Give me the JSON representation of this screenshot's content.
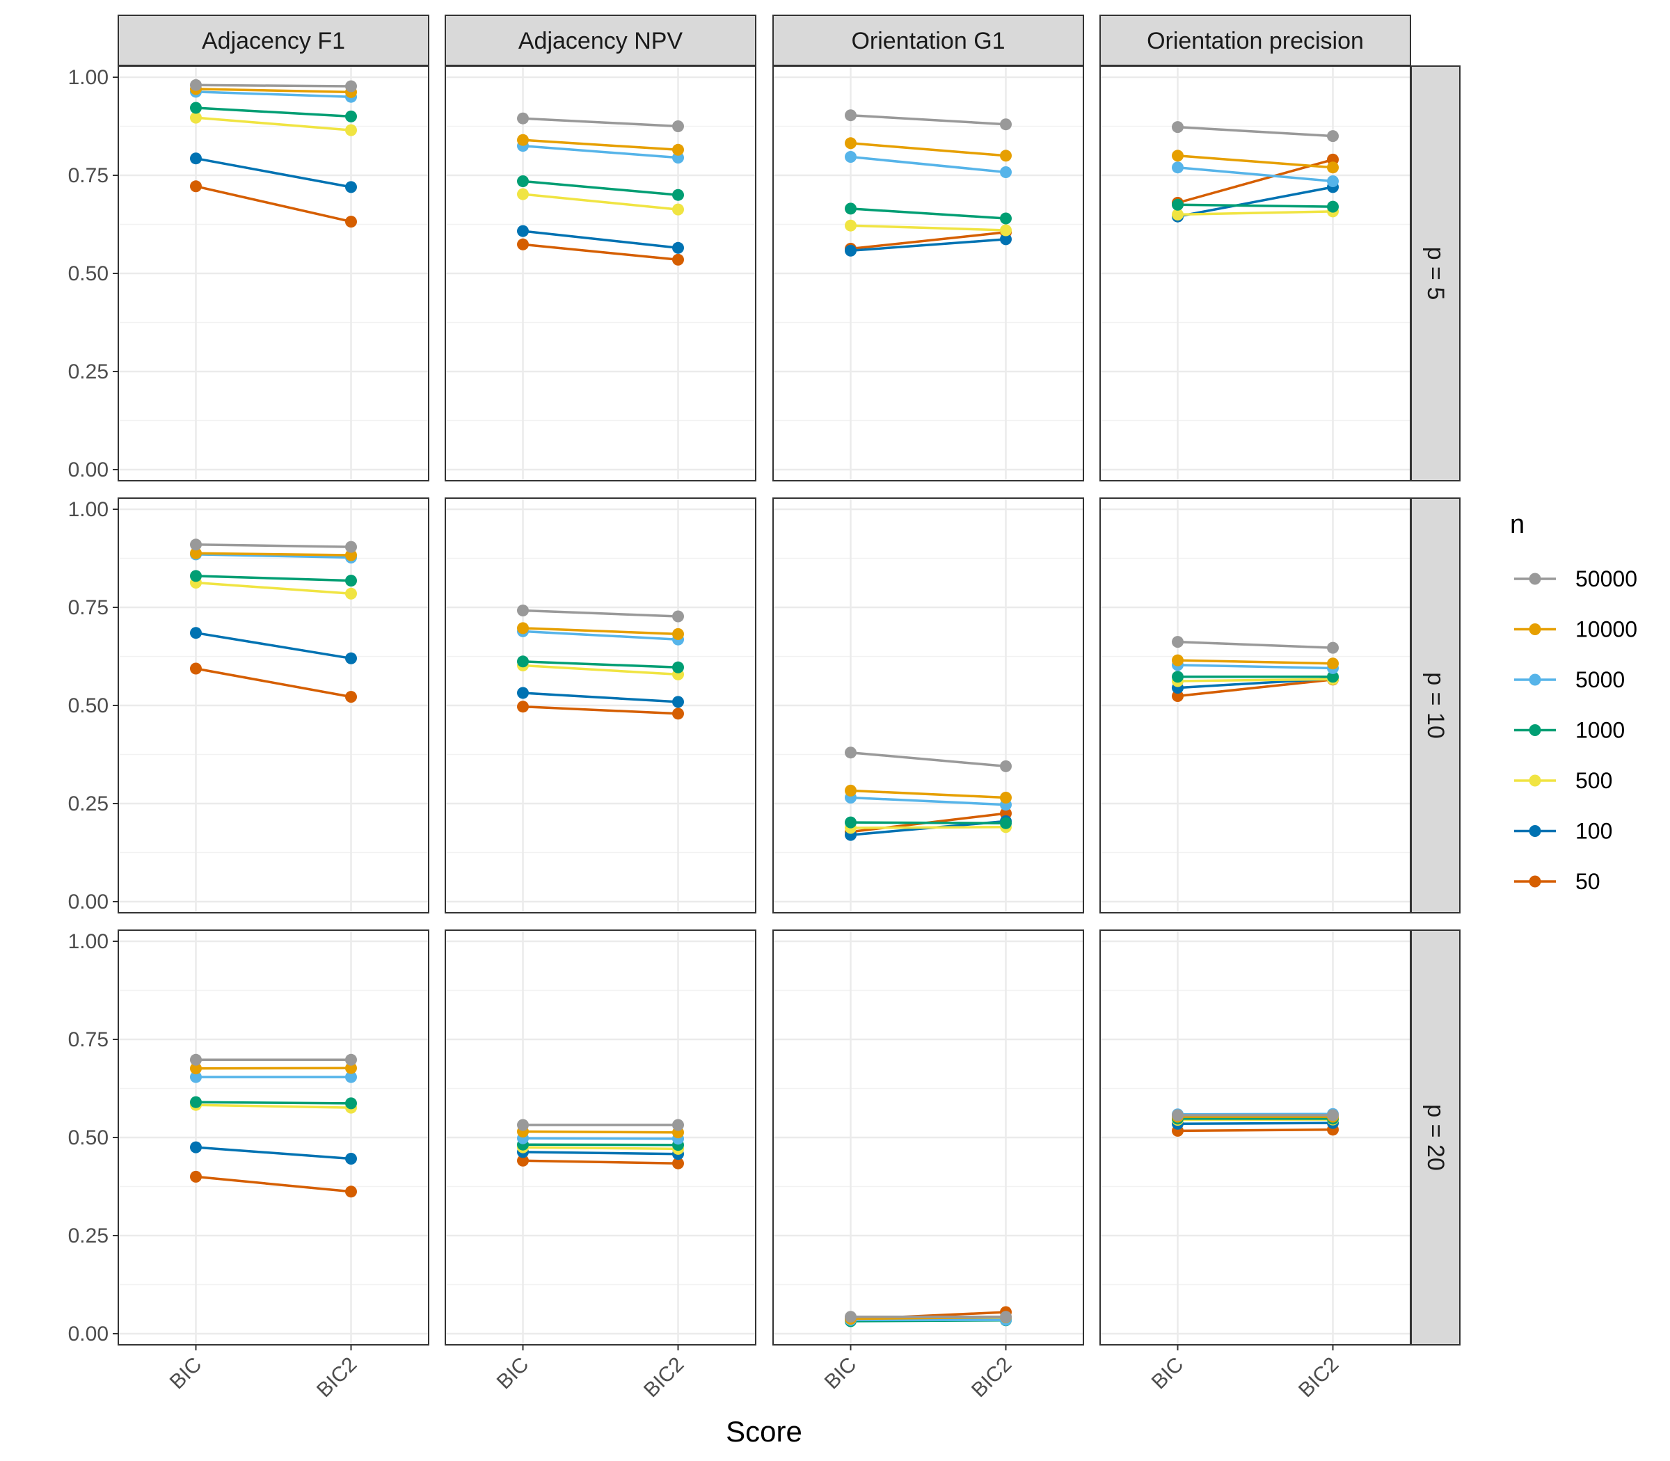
{
  "chart_data": {
    "type": "line",
    "title": "",
    "xlabel": "Score",
    "ylabel": "",
    "categories": [
      "BIC",
      "BIC2"
    ],
    "ylim": [
      0,
      1
    ],
    "yticks": [
      0,
      0.25,
      0.5,
      0.75,
      1
    ],
    "ytick_labels": [
      "0.00",
      "0.25",
      "0.50",
      "0.75",
      "1.00"
    ],
    "grid": true,
    "column_facets": [
      "Adjacency F1",
      "Adjacency NPV",
      "Orientation G1",
      "Orientation precision"
    ],
    "row_facets": [
      "p = 5",
      "p = 10",
      "p = 20"
    ],
    "legend": {
      "title": "n",
      "position": "right",
      "entries": [
        {
          "name": "50000",
          "color": "#999999"
        },
        {
          "name": "10000",
          "color": "#E69F00"
        },
        {
          "name": "5000",
          "color": "#56B4E9"
        },
        {
          "name": "1000",
          "color": "#009E73"
        },
        {
          "name": "500",
          "color": "#F0E442"
        },
        {
          "name": "100",
          "color": "#0072B2"
        },
        {
          "name": "50",
          "color": "#D55E00"
        }
      ]
    },
    "panels": [
      {
        "row": "p = 5",
        "col": "Adjacency F1",
        "series": [
          {
            "name": "50000",
            "values": [
              0.98,
              0.977
            ]
          },
          {
            "name": "10000",
            "values": [
              0.97,
              0.962
            ]
          },
          {
            "name": "5000",
            "values": [
              0.963,
              0.95
            ]
          },
          {
            "name": "1000",
            "values": [
              0.922,
              0.9
            ]
          },
          {
            "name": "500",
            "values": [
              0.897,
              0.865
            ]
          },
          {
            "name": "100",
            "values": [
              0.793,
              0.72
            ]
          },
          {
            "name": "50",
            "values": [
              0.722,
              0.632
            ]
          }
        ]
      },
      {
        "row": "p = 5",
        "col": "Adjacency NPV",
        "series": [
          {
            "name": "50000",
            "values": [
              0.895,
              0.875
            ]
          },
          {
            "name": "10000",
            "values": [
              0.84,
              0.815
            ]
          },
          {
            "name": "5000",
            "values": [
              0.825,
              0.795
            ]
          },
          {
            "name": "1000",
            "values": [
              0.735,
              0.7
            ]
          },
          {
            "name": "500",
            "values": [
              0.702,
              0.663
            ]
          },
          {
            "name": "100",
            "values": [
              0.608,
              0.565
            ]
          },
          {
            "name": "50",
            "values": [
              0.574,
              0.535
            ]
          }
        ]
      },
      {
        "row": "p = 5",
        "col": "Orientation G1",
        "series": [
          {
            "name": "50000",
            "values": [
              0.903,
              0.88
            ]
          },
          {
            "name": "10000",
            "values": [
              0.832,
              0.8
            ]
          },
          {
            "name": "5000",
            "values": [
              0.797,
              0.758
            ]
          },
          {
            "name": "1000",
            "values": [
              0.665,
              0.64
            ]
          },
          {
            "name": "500",
            "values": [
              0.622,
              0.61
            ]
          },
          {
            "name": "100",
            "values": [
              0.558,
              0.587
            ]
          },
          {
            "name": "50",
            "values": [
              0.563,
              0.605
            ]
          }
        ]
      },
      {
        "row": "p = 5",
        "col": "Orientation precision",
        "series": [
          {
            "name": "50000",
            "values": [
              0.873,
              0.85
            ]
          },
          {
            "name": "10000",
            "values": [
              0.8,
              0.77
            ]
          },
          {
            "name": "5000",
            "values": [
              0.77,
              0.735
            ]
          },
          {
            "name": "1000",
            "values": [
              0.675,
              0.67
            ]
          },
          {
            "name": "500",
            "values": [
              0.65,
              0.658
            ]
          },
          {
            "name": "100",
            "values": [
              0.645,
              0.72
            ]
          },
          {
            "name": "50",
            "values": [
              0.68,
              0.79
            ]
          }
        ]
      },
      {
        "row": "p = 10",
        "col": "Adjacency F1",
        "series": [
          {
            "name": "50000",
            "values": [
              0.91,
              0.904
            ]
          },
          {
            "name": "10000",
            "values": [
              0.888,
              0.883
            ]
          },
          {
            "name": "5000",
            "values": [
              0.885,
              0.877
            ]
          },
          {
            "name": "1000",
            "values": [
              0.83,
              0.818
            ]
          },
          {
            "name": "500",
            "values": [
              0.813,
              0.785
            ]
          },
          {
            "name": "100",
            "values": [
              0.685,
              0.62
            ]
          },
          {
            "name": "50",
            "values": [
              0.594,
              0.522
            ]
          }
        ]
      },
      {
        "row": "p = 10",
        "col": "Adjacency NPV",
        "series": [
          {
            "name": "50000",
            "values": [
              0.742,
              0.727
            ]
          },
          {
            "name": "10000",
            "values": [
              0.697,
              0.682
            ]
          },
          {
            "name": "5000",
            "values": [
              0.689,
              0.668
            ]
          },
          {
            "name": "1000",
            "values": [
              0.612,
              0.597
            ]
          },
          {
            "name": "500",
            "values": [
              0.602,
              0.579
            ]
          },
          {
            "name": "100",
            "values": [
              0.532,
              0.509
            ]
          },
          {
            "name": "50",
            "values": [
              0.497,
              0.479
            ]
          }
        ]
      },
      {
        "row": "p = 10",
        "col": "Orientation G1",
        "series": [
          {
            "name": "50000",
            "values": [
              0.38,
              0.345
            ]
          },
          {
            "name": "10000",
            "values": [
              0.283,
              0.265
            ]
          },
          {
            "name": "5000",
            "values": [
              0.265,
              0.247
            ]
          },
          {
            "name": "1000",
            "values": [
              0.202,
              0.2
            ]
          },
          {
            "name": "500",
            "values": [
              0.188,
              0.19
            ]
          },
          {
            "name": "100",
            "values": [
              0.17,
              0.205
            ]
          },
          {
            "name": "50",
            "values": [
              0.178,
              0.225
            ]
          }
        ]
      },
      {
        "row": "p = 10",
        "col": "Orientation precision",
        "series": [
          {
            "name": "50000",
            "values": [
              0.662,
              0.647
            ]
          },
          {
            "name": "10000",
            "values": [
              0.615,
              0.607
            ]
          },
          {
            "name": "5000",
            "values": [
              0.603,
              0.595
            ]
          },
          {
            "name": "1000",
            "values": [
              0.573,
              0.573
            ]
          },
          {
            "name": "500",
            "values": [
              0.562,
              0.567
            ]
          },
          {
            "name": "100",
            "values": [
              0.545,
              0.568
            ]
          },
          {
            "name": "50",
            "values": [
              0.524,
              0.566
            ]
          }
        ]
      },
      {
        "row": "p = 20",
        "col": "Adjacency F1",
        "series": [
          {
            "name": "50000",
            "values": [
              0.698,
              0.698
            ]
          },
          {
            "name": "10000",
            "values": [
              0.676,
              0.677
            ]
          },
          {
            "name": "5000",
            "values": [
              0.654,
              0.654
            ]
          },
          {
            "name": "1000",
            "values": [
              0.59,
              0.587
            ]
          },
          {
            "name": "500",
            "values": [
              0.583,
              0.576
            ]
          },
          {
            "name": "100",
            "values": [
              0.475,
              0.446
            ]
          },
          {
            "name": "50",
            "values": [
              0.4,
              0.362
            ]
          }
        ]
      },
      {
        "row": "p = 20",
        "col": "Adjacency NPV",
        "series": [
          {
            "name": "50000",
            "values": [
              0.532,
              0.532
            ]
          },
          {
            "name": "10000",
            "values": [
              0.515,
              0.513
            ]
          },
          {
            "name": "5000",
            "values": [
              0.498,
              0.497
            ]
          },
          {
            "name": "1000",
            "values": [
              0.482,
              0.481
            ]
          },
          {
            "name": "500",
            "values": [
              0.475,
              0.471
            ]
          },
          {
            "name": "100",
            "values": [
              0.463,
              0.458
            ]
          },
          {
            "name": "50",
            "values": [
              0.441,
              0.434
            ]
          }
        ]
      },
      {
        "row": "p = 20",
        "col": "Orientation G1",
        "series": [
          {
            "name": "50000",
            "values": [
              0.043,
              0.043
            ]
          },
          {
            "name": "10000",
            "values": [
              0.038,
              0.042
            ]
          },
          {
            "name": "5000",
            "values": [
              0.035,
              0.035
            ]
          },
          {
            "name": "1000",
            "values": [
              0.032,
              0.034
            ]
          },
          {
            "name": "500",
            "values": [
              0.035,
              0.038
            ]
          },
          {
            "name": "100",
            "values": [
              0.035,
              0.04
            ]
          },
          {
            "name": "50",
            "values": [
              0.037,
              0.055
            ]
          }
        ]
      },
      {
        "row": "p = 20",
        "col": "Orientation precision",
        "series": [
          {
            "name": "50000",
            "values": [
              0.557,
              0.557
            ]
          },
          {
            "name": "10000",
            "values": [
              0.553,
              0.553
            ]
          },
          {
            "name": "5000",
            "values": [
              0.559,
              0.56
            ]
          },
          {
            "name": "1000",
            "values": [
              0.548,
              0.548
            ]
          },
          {
            "name": "500",
            "values": [
              0.545,
              0.546
            ]
          },
          {
            "name": "100",
            "values": [
              0.535,
              0.537
            ]
          },
          {
            "name": "50",
            "values": [
              0.517,
              0.52
            ]
          }
        ]
      }
    ]
  }
}
